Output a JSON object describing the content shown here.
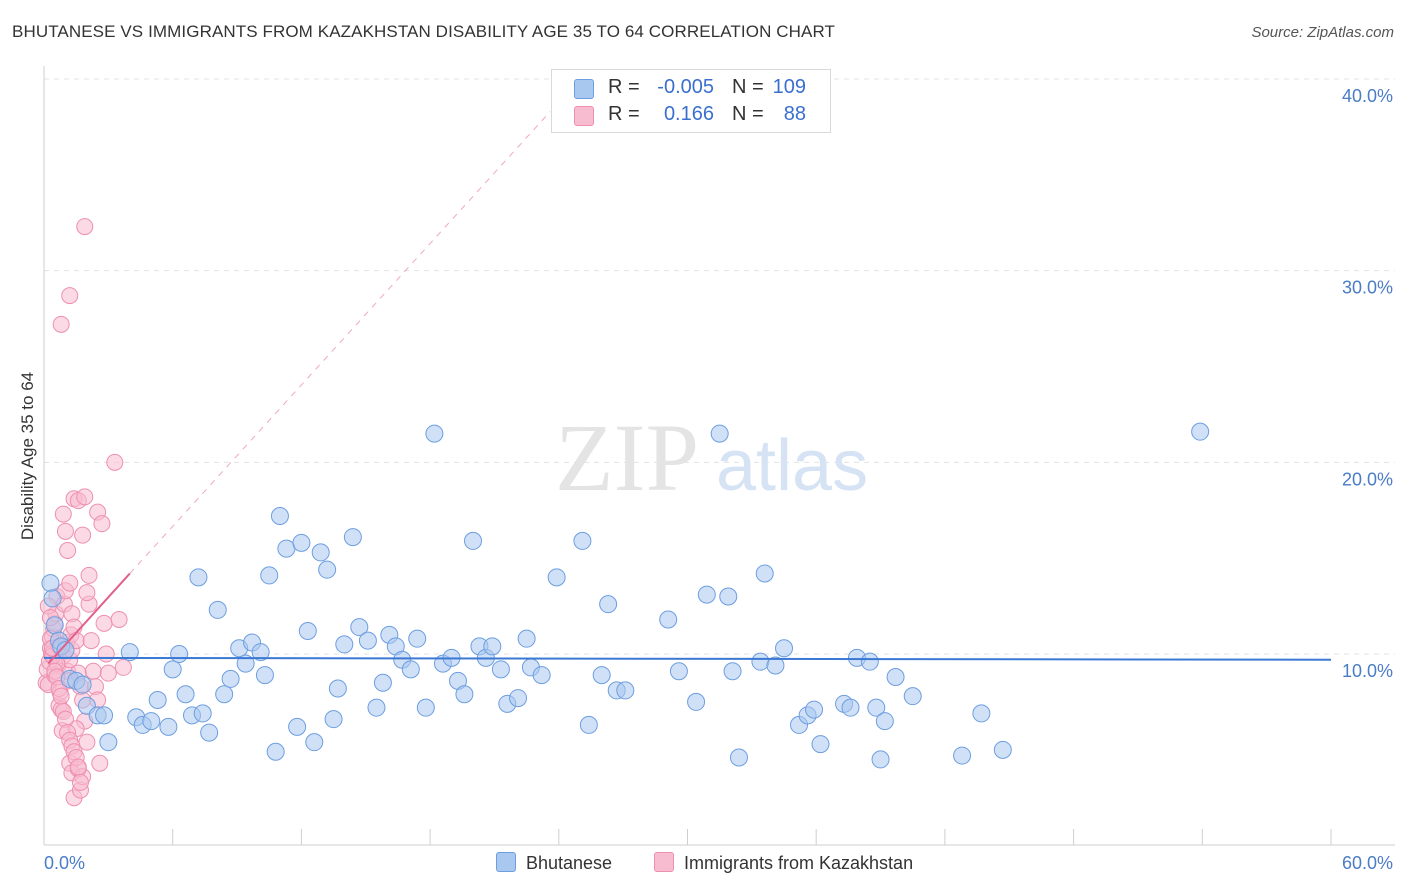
{
  "title": "BHUTANESE VS IMMIGRANTS FROM KAZAKHSTAN DISABILITY AGE 35 TO 64 CORRELATION CHART",
  "source": "Source: ZipAtlas.com",
  "watermark": {
    "zip": "ZIP",
    "atlas": "atlas"
  },
  "legend": {
    "rows": [
      {
        "r_label": "R =",
        "r_value": "-0.005",
        "n_label": "N =",
        "n_value": "109",
        "color": "#a9c8f0",
        "border": "#6d9ee0"
      },
      {
        "r_label": "R =",
        "r_value": "0.166",
        "n_label": "N =",
        "n_value": "88",
        "color": "#f7bcd0",
        "border": "#ee8fb0"
      }
    ]
  },
  "bottom_legend": [
    {
      "label": "Bhutanese",
      "color": "#a9c8f0",
      "border": "#6d9ee0"
    },
    {
      "label": "Immigrants from Kazakhstan",
      "color": "#f7bcd0",
      "border": "#ee8fb0"
    }
  ],
  "chart_data": {
    "type": "scatter",
    "title": "BHUTANESE VS IMMIGRANTS FROM KAZAKHSTAN DISABILITY AGE 35 TO 64 CORRELATION CHART",
    "xlabel": "",
    "ylabel": "Disability Age 35 to 64",
    "xlim": [
      0,
      60
    ],
    "ylim": [
      0,
      42
    ],
    "x_tick_labels": [
      "0.0%",
      "60.0%"
    ],
    "y_ticks": [
      10,
      20,
      30,
      40
    ],
    "y_tick_labels": [
      "10.0%",
      "20.0%",
      "30.0%",
      "40.0%"
    ],
    "grid": true,
    "legend_position": "top-center",
    "colors": {
      "blue": "#5b8fd9",
      "pink": "#e8709a",
      "blue_fill": "#a9c8f0",
      "pink_fill": "#f7bcd0"
    },
    "series": [
      {
        "name": "Bhutanese",
        "color": "#5b8fd9",
        "trend": {
          "x": [
            0,
            60
          ],
          "y": [
            9.8,
            9.7
          ]
        },
        "points": [
          [
            0.3,
            13.7
          ],
          [
            0.4,
            12.9
          ],
          [
            0.5,
            11.5
          ],
          [
            0.7,
            10.7
          ],
          [
            0.8,
            10.4
          ],
          [
            1.0,
            10.2
          ],
          [
            1.2,
            8.7
          ],
          [
            1.5,
            8.6
          ],
          [
            1.8,
            8.4
          ],
          [
            2.0,
            7.3
          ],
          [
            2.5,
            6.8
          ],
          [
            2.8,
            6.8
          ],
          [
            3.0,
            5.4
          ],
          [
            4.0,
            10.1
          ],
          [
            4.3,
            6.7
          ],
          [
            4.6,
            6.3
          ],
          [
            5.0,
            6.5
          ],
          [
            5.3,
            7.6
          ],
          [
            5.8,
            6.2
          ],
          [
            6.0,
            9.2
          ],
          [
            6.3,
            10.0
          ],
          [
            6.6,
            7.9
          ],
          [
            6.9,
            6.8
          ],
          [
            7.2,
            14.0
          ],
          [
            7.4,
            6.9
          ],
          [
            7.7,
            5.9
          ],
          [
            8.1,
            12.3
          ],
          [
            8.4,
            7.9
          ],
          [
            8.7,
            8.7
          ],
          [
            9.1,
            10.3
          ],
          [
            9.4,
            9.5
          ],
          [
            9.7,
            10.6
          ],
          [
            10.1,
            10.1
          ],
          [
            10.3,
            8.9
          ],
          [
            10.5,
            14.1
          ],
          [
            10.8,
            4.9
          ],
          [
            11.0,
            17.2
          ],
          [
            11.3,
            15.5
          ],
          [
            11.8,
            6.2
          ],
          [
            12.0,
            15.8
          ],
          [
            12.3,
            11.2
          ],
          [
            12.6,
            5.4
          ],
          [
            12.9,
            15.3
          ],
          [
            13.2,
            14.4
          ],
          [
            13.5,
            6.6
          ],
          [
            13.7,
            8.2
          ],
          [
            14.0,
            10.5
          ],
          [
            14.4,
            16.1
          ],
          [
            14.7,
            11.4
          ],
          [
            15.1,
            10.7
          ],
          [
            15.5,
            7.2
          ],
          [
            15.8,
            8.5
          ],
          [
            16.1,
            11.0
          ],
          [
            16.4,
            10.4
          ],
          [
            16.7,
            9.7
          ],
          [
            17.1,
            9.2
          ],
          [
            17.4,
            10.8
          ],
          [
            17.8,
            7.2
          ],
          [
            18.2,
            21.5
          ],
          [
            18.6,
            9.5
          ],
          [
            19.0,
            9.8
          ],
          [
            19.3,
            8.6
          ],
          [
            19.6,
            7.9
          ],
          [
            20.0,
            15.9
          ],
          [
            20.3,
            10.4
          ],
          [
            20.6,
            9.8
          ],
          [
            20.9,
            10.4
          ],
          [
            21.3,
            9.2
          ],
          [
            21.6,
            7.4
          ],
          [
            22.1,
            7.7
          ],
          [
            22.5,
            10.8
          ],
          [
            22.7,
            9.3
          ],
          [
            23.2,
            8.9
          ],
          [
            23.9,
            14.0
          ],
          [
            25.1,
            15.9
          ],
          [
            25.4,
            6.3
          ],
          [
            26.0,
            8.9
          ],
          [
            26.3,
            12.6
          ],
          [
            26.7,
            8.1
          ],
          [
            27.1,
            8.1
          ],
          [
            29.1,
            11.8
          ],
          [
            29.6,
            9.1
          ],
          [
            30.4,
            7.5
          ],
          [
            30.9,
            13.1
          ],
          [
            31.5,
            21.5
          ],
          [
            31.9,
            13.0
          ],
          [
            32.1,
            9.1
          ],
          [
            32.4,
            4.6
          ],
          [
            33.4,
            9.6
          ],
          [
            33.6,
            14.2
          ],
          [
            34.1,
            9.4
          ],
          [
            34.5,
            10.3
          ],
          [
            35.2,
            6.3
          ],
          [
            35.6,
            6.8
          ],
          [
            35.9,
            7.1
          ],
          [
            36.2,
            5.3
          ],
          [
            37.3,
            7.4
          ],
          [
            37.6,
            7.2
          ],
          [
            37.9,
            9.8
          ],
          [
            38.5,
            9.6
          ],
          [
            38.8,
            7.2
          ],
          [
            39.0,
            4.5
          ],
          [
            39.2,
            6.5
          ],
          [
            39.7,
            8.8
          ],
          [
            40.5,
            7.8
          ],
          [
            42.8,
            4.7
          ],
          [
            43.7,
            6.9
          ],
          [
            44.7,
            5.0
          ],
          [
            53.9,
            21.6
          ]
        ]
      },
      {
        "name": "Immigrants from Kazakhstan",
        "color": "#e8709a",
        "trend": {
          "x": [
            0.2,
            4.0
          ],
          "y": [
            9.5,
            14.2
          ]
        },
        "trend_ext": {
          "x": [
            4.0,
            23.6
          ],
          "y": [
            14.2,
            38.3
          ]
        },
        "points": [
          [
            0.1,
            8.5
          ],
          [
            0.15,
            9.2
          ],
          [
            0.2,
            8.4
          ],
          [
            0.25,
            9.6
          ],
          [
            0.3,
            10.3
          ],
          [
            0.35,
            10.0
          ],
          [
            0.4,
            10.9
          ],
          [
            0.45,
            11.3
          ],
          [
            0.5,
            11.6
          ],
          [
            0.55,
            12.1
          ],
          [
            0.6,
            13.0
          ],
          [
            0.65,
            9.4
          ],
          [
            0.7,
            7.3
          ],
          [
            0.75,
            8.0
          ],
          [
            0.8,
            7.1
          ],
          [
            0.85,
            6.0
          ],
          [
            0.9,
            9.9
          ],
          [
            0.95,
            12.6
          ],
          [
            1.0,
            13.3
          ],
          [
            1.05,
            10.6
          ],
          [
            1.1,
            9.1
          ],
          [
            1.15,
            8.6
          ],
          [
            1.2,
            9.7
          ],
          [
            1.25,
            11.0
          ],
          [
            1.3,
            10.2
          ],
          [
            0.3,
            10.8
          ],
          [
            0.4,
            9.9
          ],
          [
            0.5,
            8.9
          ],
          [
            0.6,
            9.5
          ],
          [
            0.7,
            10.4
          ],
          [
            0.8,
            27.2
          ],
          [
            0.9,
            17.3
          ],
          [
            1.0,
            16.4
          ],
          [
            1.1,
            15.4
          ],
          [
            1.2,
            13.7
          ],
          [
            1.3,
            12.1
          ],
          [
            1.4,
            11.4
          ],
          [
            1.5,
            10.7
          ],
          [
            1.6,
            9.0
          ],
          [
            1.7,
            8.3
          ],
          [
            1.8,
            7.6
          ],
          [
            1.9,
            6.5
          ],
          [
            2.0,
            5.4
          ],
          [
            1.2,
            4.3
          ],
          [
            1.3,
            3.8
          ],
          [
            1.4,
            2.5
          ],
          [
            1.5,
            6.1
          ],
          [
            1.6,
            4.0
          ],
          [
            1.7,
            2.9
          ],
          [
            1.8,
            3.6
          ],
          [
            1.2,
            28.7
          ],
          [
            1.4,
            18.1
          ],
          [
            1.6,
            18.0
          ],
          [
            1.8,
            16.2
          ],
          [
            1.9,
            18.2
          ],
          [
            2.1,
            12.6
          ],
          [
            2.2,
            10.7
          ],
          [
            2.3,
            9.1
          ],
          [
            2.4,
            8.3
          ],
          [
            2.5,
            7.6
          ],
          [
            2.6,
            4.3
          ],
          [
            1.9,
            32.3
          ],
          [
            2.5,
            17.4
          ],
          [
            2.7,
            16.8
          ],
          [
            2.8,
            11.6
          ],
          [
            2.9,
            10.0
          ],
          [
            3.0,
            9.0
          ],
          [
            3.3,
            20.0
          ],
          [
            3.5,
            11.8
          ],
          [
            3.7,
            9.3
          ],
          [
            0.2,
            12.5
          ],
          [
            0.3,
            11.9
          ],
          [
            0.4,
            10.3
          ],
          [
            0.5,
            9.1
          ],
          [
            0.6,
            8.8
          ],
          [
            0.7,
            8.2
          ],
          [
            0.8,
            7.8
          ],
          [
            0.9,
            7.0
          ],
          [
            1.0,
            6.6
          ],
          [
            1.1,
            5.9
          ],
          [
            1.2,
            5.5
          ],
          [
            1.3,
            5.2
          ],
          [
            1.4,
            4.9
          ],
          [
            1.5,
            4.6
          ],
          [
            1.6,
            4.1
          ],
          [
            1.7,
            3.3
          ],
          [
            2.0,
            13.2
          ],
          [
            2.1,
            14.1
          ]
        ]
      }
    ]
  }
}
